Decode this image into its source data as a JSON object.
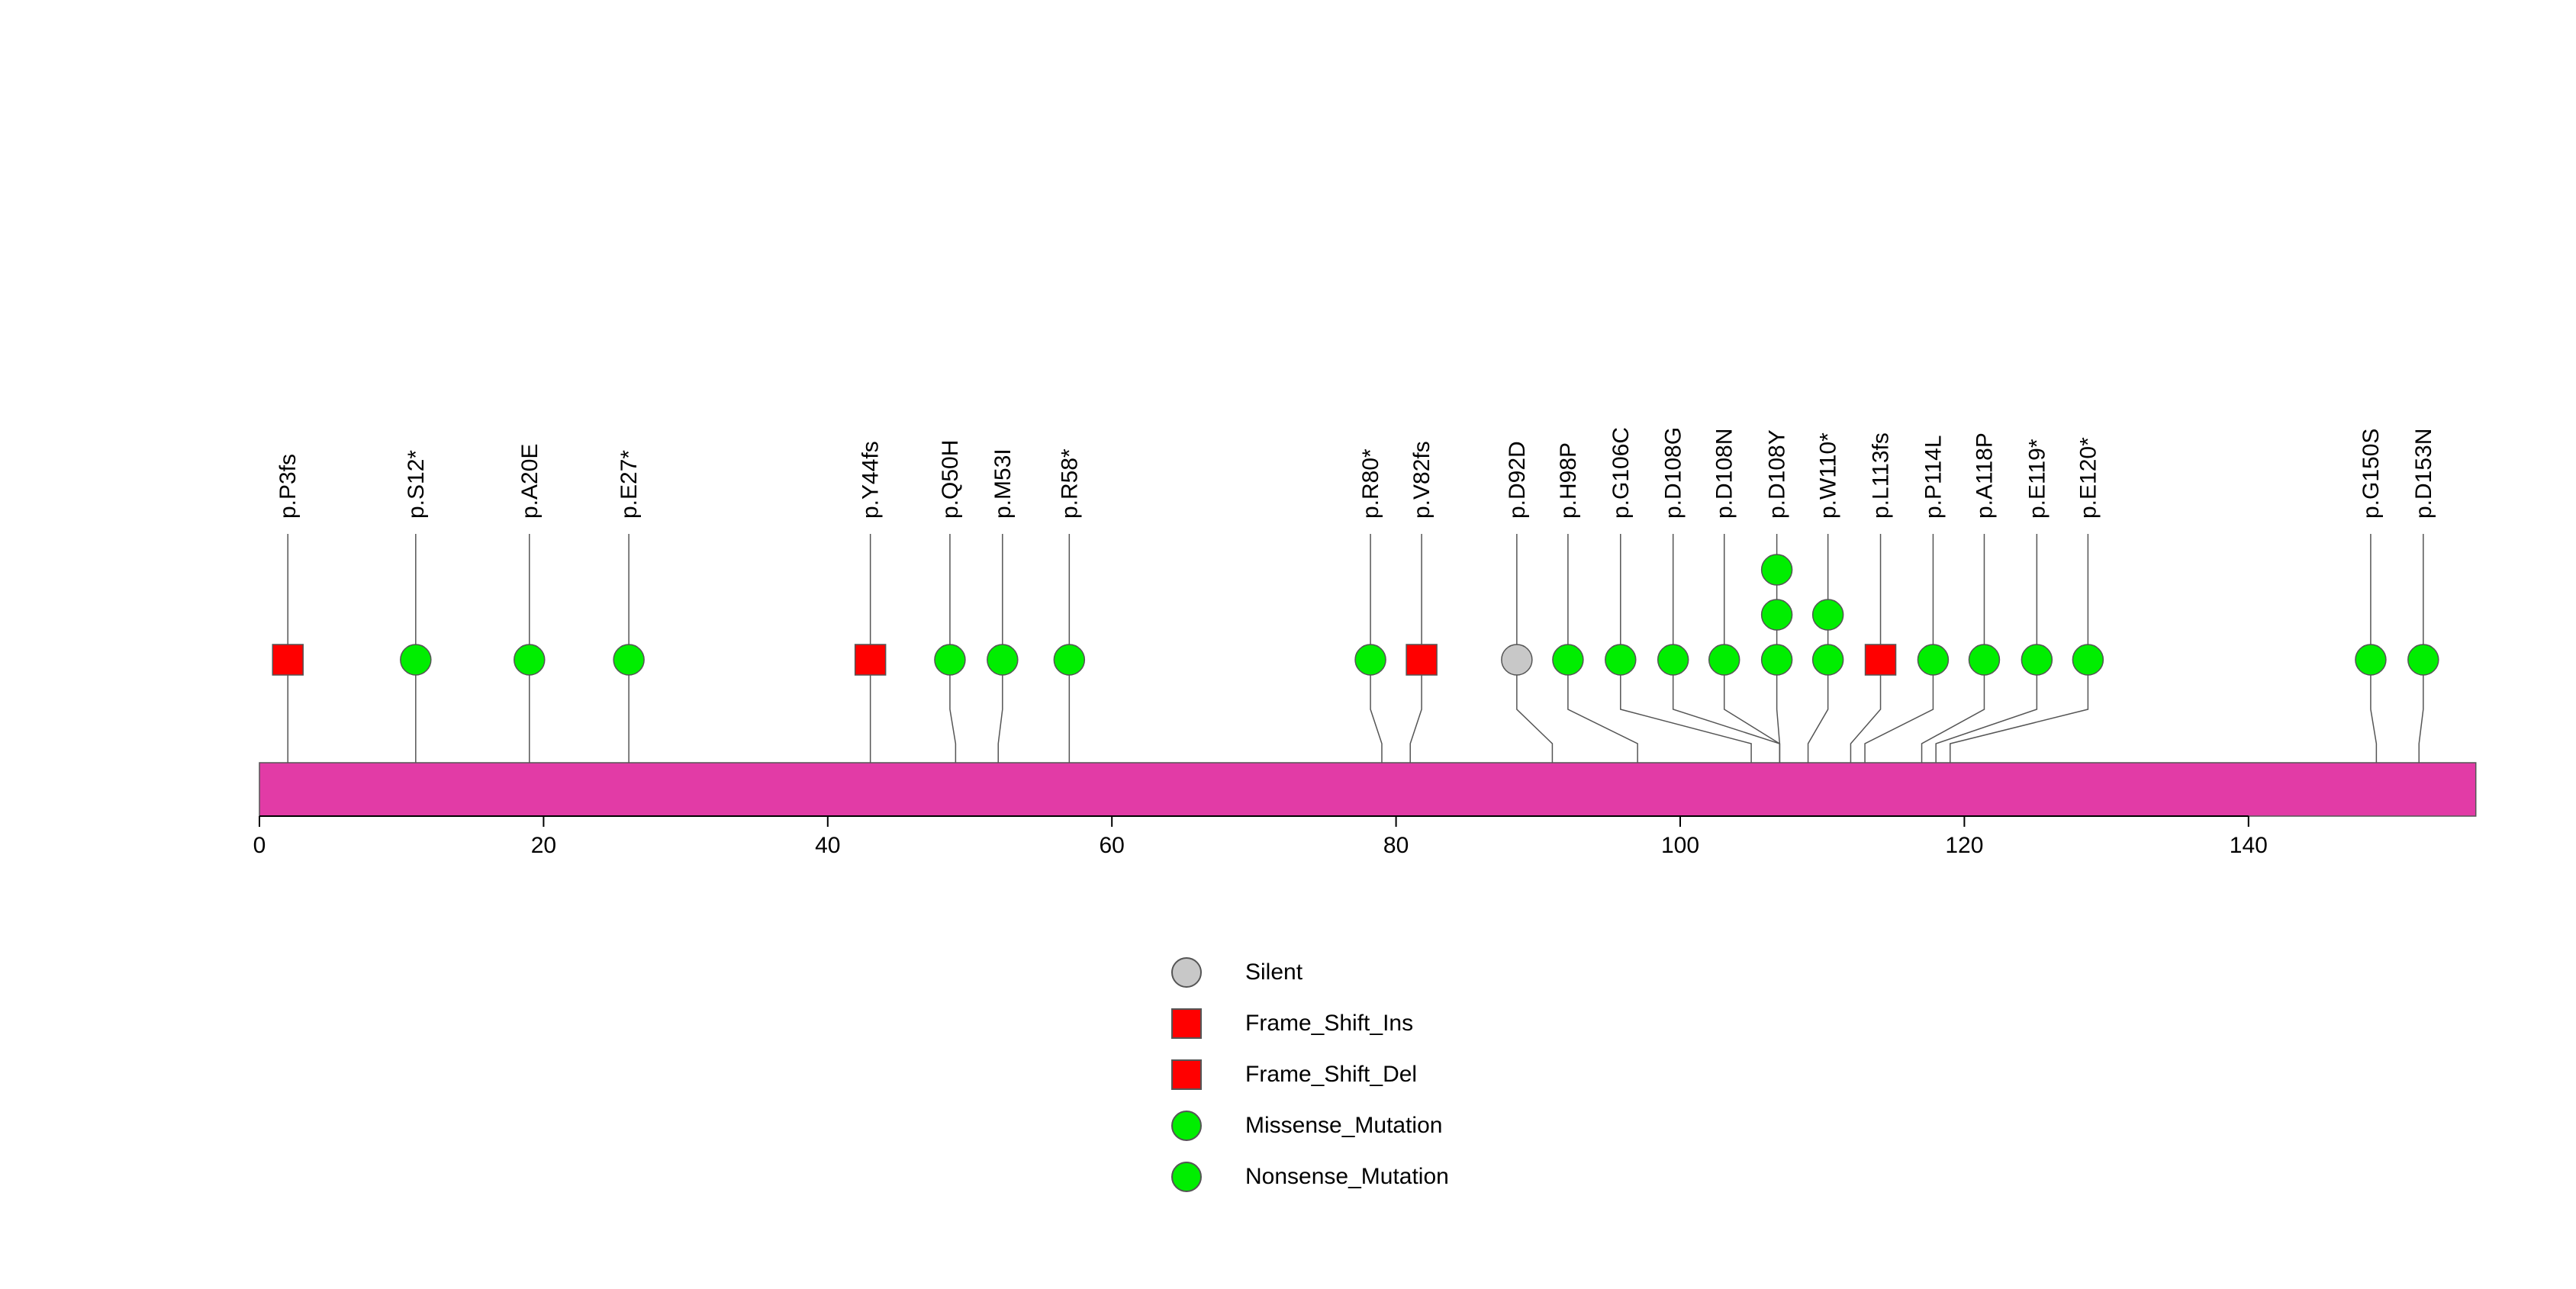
{
  "chart_data": {
    "type": "lollipop",
    "protein_length": 156,
    "xlim": [
      0,
      156
    ],
    "x_ticks": [
      0,
      20,
      40,
      60,
      80,
      100,
      120,
      140
    ],
    "domain_color": "#e23ba6",
    "mutations": [
      {
        "label": "p.P3fs",
        "pos": 2,
        "lane": 2,
        "stack": 1,
        "type": "Frame_Shift_Ins"
      },
      {
        "label": "p.S12*",
        "pos": 11,
        "lane": 11,
        "stack": 1,
        "type": "Nonsense_Mutation"
      },
      {
        "label": "p.A20E",
        "pos": 19,
        "lane": 19,
        "stack": 1,
        "type": "Missense_Mutation"
      },
      {
        "label": "p.E27*",
        "pos": 26,
        "lane": 26,
        "stack": 1,
        "type": "Nonsense_Mutation"
      },
      {
        "label": "p.Y44fs",
        "pos": 43,
        "lane": 43,
        "stack": 1,
        "type": "Frame_Shift_Del"
      },
      {
        "label": "p.Q50H",
        "pos": 49,
        "lane": 48.6,
        "stack": 1,
        "type": "Missense_Mutation"
      },
      {
        "label": "p.M53I",
        "pos": 52,
        "lane": 52.3,
        "stack": 1,
        "type": "Missense_Mutation"
      },
      {
        "label": "p.R58*",
        "pos": 57,
        "lane": 57,
        "stack": 1,
        "type": "Nonsense_Mutation"
      },
      {
        "label": "p.R80*",
        "pos": 79,
        "lane": 78.2,
        "stack": 1,
        "type": "Nonsense_Mutation"
      },
      {
        "label": "p.V82fs",
        "pos": 81,
        "lane": 81.8,
        "stack": 1,
        "type": "Frame_Shift_Del"
      },
      {
        "label": "p.D92D",
        "pos": 91,
        "lane": 88.5,
        "stack": 1,
        "type": "Silent"
      },
      {
        "label": "p.H98P",
        "pos": 97,
        "lane": 92.1,
        "stack": 1,
        "type": "Missense_Mutation"
      },
      {
        "label": "p.G106C",
        "pos": 105,
        "lane": 95.8,
        "stack": 1,
        "type": "Missense_Mutation"
      },
      {
        "label": "p.D108G",
        "pos": 107,
        "lane": 99.5,
        "stack": 1,
        "type": "Missense_Mutation"
      },
      {
        "label": "p.D108N",
        "pos": 107,
        "lane": 103.1,
        "stack": 1,
        "type": "Missense_Mutation"
      },
      {
        "label": "p.D108Y",
        "pos": 107,
        "lane": 106.8,
        "stack": 3,
        "type": "Missense_Mutation"
      },
      {
        "label": "p.W110*",
        "pos": 109,
        "lane": 110.4,
        "stack": 2,
        "type": "Nonsense_Mutation"
      },
      {
        "label": "p.L113fs",
        "pos": 112,
        "lane": 114.1,
        "stack": 1,
        "type": "Frame_Shift_Del"
      },
      {
        "label": "p.P114L",
        "pos": 113,
        "lane": 117.8,
        "stack": 1,
        "type": "Missense_Mutation"
      },
      {
        "label": "p.A118P",
        "pos": 117,
        "lane": 121.4,
        "stack": 1,
        "type": "Missense_Mutation"
      },
      {
        "label": "p.E119*",
        "pos": 118,
        "lane": 125.1,
        "stack": 1,
        "type": "Nonsense_Mutation"
      },
      {
        "label": "p.E120*",
        "pos": 119,
        "lane": 128.7,
        "stack": 1,
        "type": "Nonsense_Mutation"
      },
      {
        "label": "p.G150S",
        "pos": 149,
        "lane": 148.6,
        "stack": 1,
        "type": "Missense_Mutation"
      },
      {
        "label": "p.D153N",
        "pos": 152,
        "lane": 152.3,
        "stack": 1,
        "type": "Missense_Mutation"
      }
    ],
    "legend": [
      {
        "label": "Silent",
        "shape": "circle",
        "color": "#c8c8c8"
      },
      {
        "label": "Frame_Shift_Ins",
        "shape": "square",
        "color": "#ff0000"
      },
      {
        "label": "Frame_Shift_Del",
        "shape": "square",
        "color": "#ff0000"
      },
      {
        "label": "Missense_Mutation",
        "shape": "circle",
        "color": "#00ee00"
      },
      {
        "label": "Nonsense_Mutation",
        "shape": "circle",
        "color": "#00ee00"
      }
    ]
  }
}
